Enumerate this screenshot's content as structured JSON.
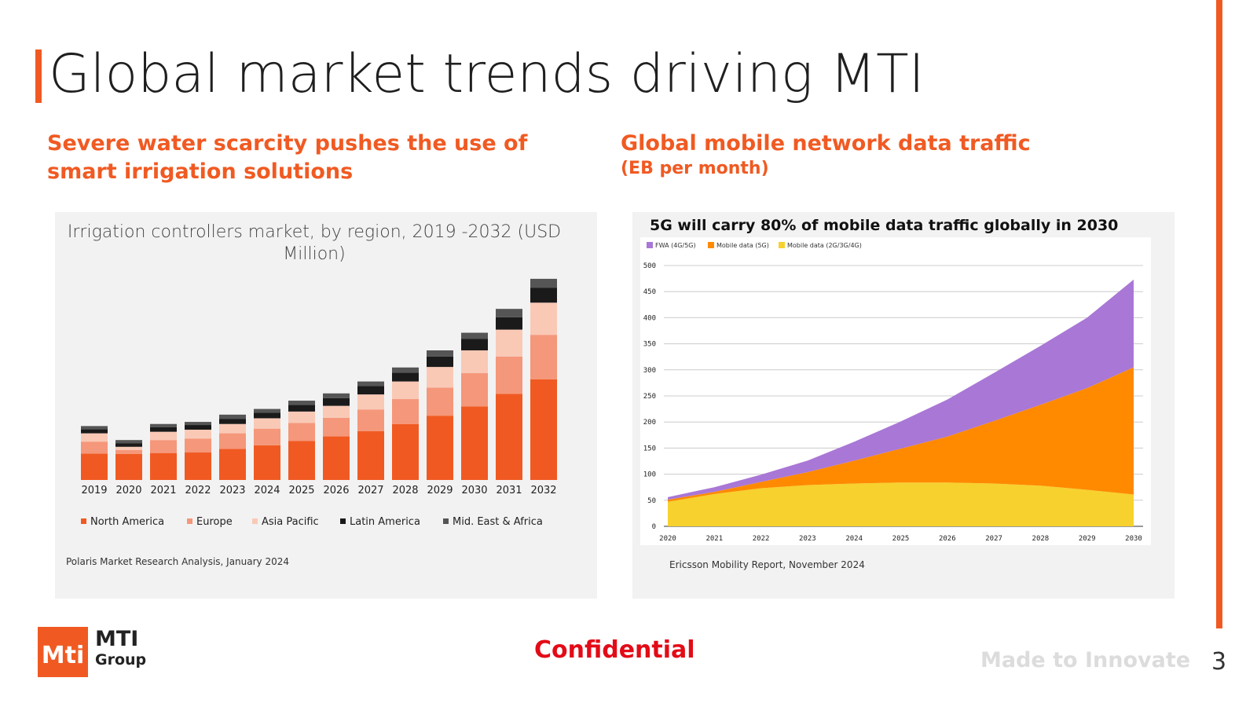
{
  "page": {
    "title": "Global market trends driving MTI",
    "left_heading": "Severe water scarcity pushes the use of smart irrigation solutions",
    "right_heading": "Global mobile network data traffic",
    "right_subheading": "(EB per month)",
    "confidential": "Confidential",
    "tagline": "Made to Innovate",
    "page_number": "3",
    "logo": {
      "mark": "Mti",
      "name": "MTI",
      "sub": "Group"
    }
  },
  "colors": {
    "accent": "#f05a22",
    "north_america": "#f05a22",
    "europe": "#f5977a",
    "asia_pacific": "#f9c9b6",
    "latin_america": "#1a1a1a",
    "mea": "#555555",
    "fwa": "#a977d6",
    "mobile_5g": "#ff8a00",
    "mobile_legacy": "#f7d12e",
    "confidential": "#e30b17"
  },
  "chart_data": [
    {
      "type": "bar",
      "stacked": true,
      "title": "Irrigation controllers market, by region, 2019 -2032 (USD Million)",
      "categories": [
        "2019",
        "2020",
        "2021",
        "2022",
        "2023",
        "2024",
        "2025",
        "2026",
        "2027",
        "2028",
        "2029",
        "2030",
        "2031",
        "2032"
      ],
      "series": [
        {
          "name": "North America",
          "values": [
            255,
            250,
            260,
            265,
            300,
            335,
            375,
            420,
            470,
            540,
            620,
            710,
            830,
            970
          ]
        },
        {
          "name": "Europe",
          "values": [
            115,
            40,
            125,
            135,
            150,
            160,
            175,
            180,
            210,
            240,
            270,
            320,
            360,
            430
          ]
        },
        {
          "name": "Asia Pacific",
          "values": [
            80,
            30,
            80,
            85,
            90,
            100,
            110,
            115,
            145,
            170,
            200,
            220,
            260,
            310
          ]
        },
        {
          "name": "Latin America",
          "values": [
            40,
            35,
            45,
            45,
            50,
            55,
            65,
            75,
            80,
            85,
            100,
            110,
            120,
            145
          ]
        },
        {
          "name": "Mid. East & Africa",
          "values": [
            30,
            30,
            30,
            30,
            40,
            35,
            40,
            45,
            45,
            50,
            60,
            60,
            80,
            85
          ]
        }
      ],
      "legend": "bottom",
      "source": "Polaris Market Research Analysis, January 2024"
    },
    {
      "type": "area",
      "stacked": true,
      "title": "5G will carry 80% of mobile data traffic globally in 2030",
      "x": [
        "2020",
        "2021",
        "2022",
        "2023",
        "2024",
        "2025",
        "2026",
        "2027",
        "2028",
        "2029",
        "2030"
      ],
      "series": [
        {
          "name": "Mobile data (2G/3G/4G)",
          "values": [
            47,
            62,
            73,
            79,
            82,
            84,
            84,
            82,
            78,
            70,
            61
          ]
        },
        {
          "name": "Mobile data (5G)",
          "values": [
            4,
            4,
            12,
            25,
            44,
            65,
            88,
            120,
            155,
            195,
            244
          ]
        },
        {
          "name": "FWA (4G/5G)",
          "values": [
            5,
            9,
            14,
            22,
            36,
            52,
            71,
            92,
            113,
            135,
            168
          ]
        }
      ],
      "yticks": [
        "0",
        "50",
        "100",
        "150",
        "200",
        "250",
        "300",
        "350",
        "400",
        "450",
        "500"
      ],
      "ylim": [
        0,
        500
      ],
      "grid": true,
      "legend": "top-left",
      "source": "Ericsson Mobility Report, November 2024"
    }
  ]
}
